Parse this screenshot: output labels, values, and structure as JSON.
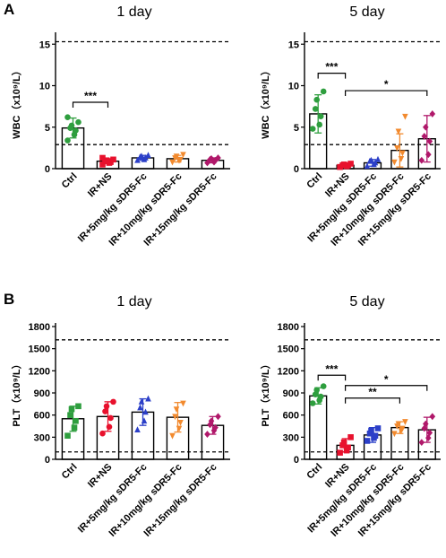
{
  "chart_data": [
    {
      "type": "bar",
      "panel_label": "A",
      "title": "1 day",
      "ylabel": "WBC（x10⁹/L）",
      "ylim": [
        0,
        16
      ],
      "yticks": [
        0,
        5,
        10,
        15
      ],
      "reference_lines": [
        15.3,
        2.9
      ],
      "categories": [
        "Ctrl",
        "IR+NS",
        "IR+5mg/kg sDR5-Fc",
        "IR+10mg/kg sDR5-Fc",
        "IR+15mg/kg sDR5-Fc"
      ],
      "values": [
        4.9,
        0.9,
        1.3,
        1.2,
        1.0
      ],
      "errors": [
        1.2,
        0.3,
        0.3,
        0.4,
        0.3
      ],
      "point_colors": [
        "#2e9e3e",
        "#e8112d",
        "#2b3fc8",
        "#f28a2e",
        "#b0186a"
      ],
      "point_shapes": [
        "circle",
        "square",
        "triangle-up",
        "triangle-down",
        "diamond"
      ],
      "points": [
        [
          3.4,
          4.1,
          4.6,
          4.9,
          5.2,
          5.6,
          6.2
        ],
        [
          0.5,
          0.7,
          0.8,
          0.9,
          1.0,
          1.1,
          1.3
        ],
        [
          1.0,
          1.1,
          1.3,
          1.4,
          1.5,
          1.6
        ],
        [
          0.8,
          1.0,
          1.1,
          1.3,
          1.5,
          1.7
        ],
        [
          0.7,
          0.8,
          1.0,
          1.1,
          1.2,
          1.3
        ]
      ],
      "significance": [
        {
          "from": 0,
          "to": 1,
          "y": 8.0,
          "label": "***"
        }
      ]
    },
    {
      "type": "bar",
      "panel_label": "",
      "title": "5 day",
      "ylabel": "WBC（x10⁹/L）",
      "ylim": [
        0,
        16
      ],
      "yticks": [
        0,
        5,
        10,
        15
      ],
      "reference_lines": [
        15.3,
        2.9
      ],
      "categories": [
        "Ctrl",
        "IR+NS",
        "IR+5mg/kg sDR5-Fc",
        "IR+10mg/kg sDR5-Fc",
        "IR+15mg/kg sDR5-Fc"
      ],
      "values": [
        6.6,
        0.4,
        0.7,
        2.2,
        3.6
      ],
      "errors": [
        2.3,
        0.2,
        0.4,
        2.0,
        2.8
      ],
      "point_colors": [
        "#2e9e3e",
        "#e8112d",
        "#2b3fc8",
        "#f28a2e",
        "#b0186a"
      ],
      "point_shapes": [
        "circle",
        "square",
        "triangle-up",
        "triangle-down",
        "diamond"
      ],
      "points": [
        [
          4.8,
          5.3,
          6.3,
          7.2,
          8.3,
          9.3
        ],
        [
          0.2,
          0.3,
          0.4,
          0.4,
          0.5,
          0.6
        ],
        [
          0.3,
          0.5,
          0.7,
          0.9,
          1.0,
          1.1
        ],
        [
          0.8,
          1.2,
          1.9,
          2.5,
          4.5,
          6.3
        ],
        [
          1.0,
          1.7,
          3.3,
          3.9,
          5.0,
          6.6
        ]
      ],
      "significance": [
        {
          "from": 0,
          "to": 1,
          "y": 11.5,
          "label": "***"
        },
        {
          "from": 1,
          "to": 4,
          "y": 9.4,
          "label": "*"
        }
      ]
    },
    {
      "type": "bar",
      "panel_label": "B",
      "title": "1 day",
      "ylabel": "PLT（x10⁹/L）",
      "ylim": [
        0,
        1800
      ],
      "yticks": [
        0,
        300,
        600,
        900,
        1200,
        1500,
        1800
      ],
      "reference_lines": [
        1620,
        100
      ],
      "categories": [
        "Ctrl",
        "IR+NS",
        "IR+5mg/kg sDR5-Fc",
        "IR+10mg/kg sDR5-Fc",
        "IR+15mg/kg sDR5-Fc"
      ],
      "values": [
        550,
        580,
        640,
        570,
        460
      ],
      "errors": [
        170,
        200,
        180,
        200,
        120
      ],
      "point_colors": [
        "#2e9e3e",
        "#e8112d",
        "#2b3fc8",
        "#f28a2e",
        "#b0186a"
      ],
      "point_shapes": [
        "square",
        "circle",
        "triangle-up",
        "triangle-down",
        "diamond"
      ],
      "points": [
        [
          320,
          430,
          520,
          600,
          680,
          720
        ],
        [
          350,
          440,
          560,
          650,
          720,
          780
        ],
        [
          400,
          520,
          640,
          700,
          780,
          820
        ],
        [
          320,
          420,
          500,
          580,
          680,
          760
        ],
        [
          340,
          390,
          430,
          470,
          520,
          580
        ]
      ],
      "significance": []
    },
    {
      "type": "bar",
      "panel_label": "",
      "title": "5 day",
      "ylabel": "PLT（x10⁹/L）",
      "ylim": [
        0,
        1800
      ],
      "yticks": [
        0,
        300,
        600,
        900,
        1200,
        1500,
        1800
      ],
      "reference_lines": [
        1620,
        100
      ],
      "categories": [
        "Ctrl",
        "IR+NS",
        "IR+5mg/kg sDR5-Fc",
        "IR+10mg/kg sDR5-Fc",
        "IR+15mg/kg sDR5-Fc"
      ],
      "values": [
        860,
        190,
        330,
        430,
        400
      ],
      "errors": [
        110,
        90,
        100,
        80,
        170
      ],
      "point_colors": [
        "#2e9e3e",
        "#e8112d",
        "#2b3fc8",
        "#f28a2e",
        "#b0186a"
      ],
      "point_shapes": [
        "circle",
        "square",
        "square",
        "triangle-down",
        "diamond"
      ],
      "points": [
        [
          760,
          800,
          850,
          880,
          940,
          990
        ],
        [
          90,
          120,
          160,
          190,
          230,
          300
        ],
        [
          250,
          290,
          320,
          350,
          390,
          420
        ],
        [
          350,
          390,
          420,
          450,
          480,
          510
        ],
        [
          230,
          290,
          360,
          420,
          480,
          580
        ]
      ],
      "significance": [
        {
          "from": 0,
          "to": 1,
          "y": 1140,
          "label": "***"
        },
        {
          "from": 1,
          "to": 3,
          "y": 830,
          "label": "**"
        },
        {
          "from": 1,
          "to": 4,
          "y": 1000,
          "label": "*"
        }
      ]
    }
  ]
}
